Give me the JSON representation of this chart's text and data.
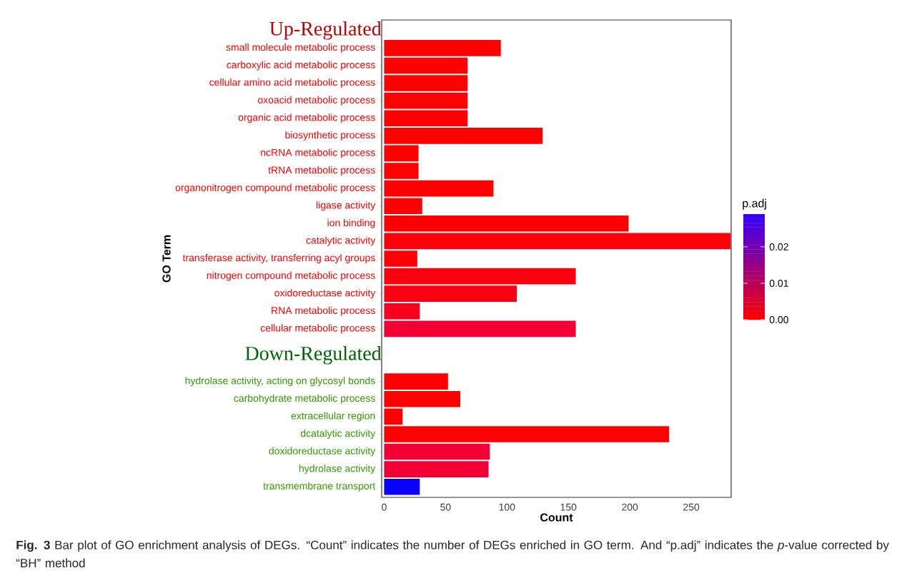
{
  "chart_data": {
    "type": "bar",
    "orientation": "horizontal",
    "xlabel": "Count",
    "ylabel": "GO Term",
    "categories": [
      null,
      "small molecule metabolic process",
      "carboxylic acid metabolic process",
      "cellular amino acid metabolic process",
      "oxoacid metabolic process",
      "organic acid metabolic process",
      "biosynthetic process",
      "ncRNA metabolic process",
      "tRNA metabolic process",
      "organonitrogen compound metabolic process",
      "ligase activity",
      "ion binding",
      "catalytic activity",
      "transferase activity, transferring acyl groups",
      "nitrogen compound metabolic process",
      "oxidoreductase activity",
      "RNA metabolic process",
      "cellular metabolic process",
      null,
      null,
      "hydrolase activity, acting on glycosyl bonds",
      "carbohydrate metabolic process",
      "extracellular region",
      "dcatalytic activity",
      "doxidoreductase activity",
      "hydrolase activity",
      "transmembrane transport"
    ],
    "values": [
      null,
      95,
      68,
      68,
      68,
      68,
      129,
      28,
      28,
      89,
      31,
      199,
      282,
      27,
      156,
      108,
      29,
      156,
      null,
      null,
      52,
      62,
      15,
      232,
      86,
      85,
      29
    ],
    "colors": [
      null,
      "#fe0000",
      "#fe0000",
      "#fe0000",
      "#fe0000",
      "#fe0000",
      "#fe0000",
      "#fe0000",
      "#fe0000",
      "#fe0000",
      "#fd0000",
      "#fd0003",
      "#ff000b",
      "#fd0006",
      "#fc0010",
      "#fb0012",
      "#f7001e",
      "#f20034",
      null,
      null,
      "#ff0000",
      "#ff0000",
      "#ff0000",
      "#ff0000",
      "#f20034",
      "#f20034",
      "#0a00ff"
    ],
    "xlim": [
      -2,
      282.5
    ],
    "xticks": [
      0,
      50,
      100,
      150,
      200,
      250
    ],
    "grid": false,
    "clabel": "p.adj",
    "clim": [
      0,
      0.029
    ],
    "cticks": [
      {
        "value": 0,
        "label": "0.00"
      },
      {
        "value": 0.01,
        "label": "0.01"
      },
      {
        "value": 0.02,
        "label": "0.02"
      }
    ],
    "annotations": [
      "Up-Regulated",
      "Down-Regulated",
      "**Fig. 3** Bar plot of GO enrichment analysis of DEGs. “Count” indicates the number of DEGs enriched in GO term. And “p.adj” indicates the *p*-value corrected by “BH” method"
    ]
  }
}
